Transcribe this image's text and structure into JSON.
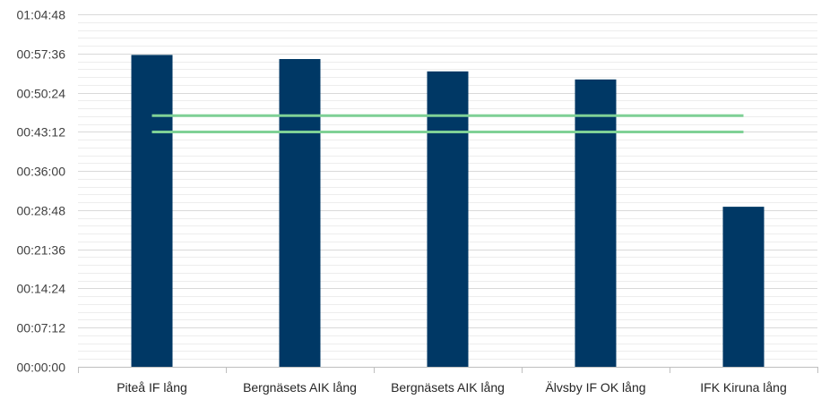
{
  "chart_data": {
    "type": "bar",
    "title": "",
    "xlabel": "",
    "ylabel": "",
    "categories": [
      "Piteå IF lång",
      "Bergnäsets AIK lång",
      "Bergnäsets AIK lång",
      "Älvsby IF OK lång",
      "IFK Kiruna lång"
    ],
    "series": [
      {
        "values_seconds": [
          3440,
          3395,
          3258,
          3170,
          1765
        ],
        "values": [
          "00:57:20",
          "00:56:35",
          "00:54:18",
          "00:52:50",
          "00:29:25"
        ]
      }
    ],
    "reference_lines": [
      {
        "value_seconds": 2770,
        "value": "00:46:10"
      },
      {
        "value_seconds": 2590,
        "value": "00:43:10"
      }
    ],
    "ylim_seconds": [
      0,
      3888
    ],
    "yticks": [
      "00:00:00",
      "00:07:12",
      "00:14:24",
      "00:21:36",
      "00:28:48",
      "00:36:00",
      "00:43:12",
      "00:50:24",
      "00:57:36",
      "01:04:48"
    ],
    "grid": true,
    "legend": "none",
    "colors": {
      "bar": "#003865",
      "reference_line": "#7fd196",
      "major_grid": "#d9d9d9",
      "minor_grid": "#ededed",
      "axis": "#bfbfbf",
      "tick_text": "#404040"
    }
  }
}
